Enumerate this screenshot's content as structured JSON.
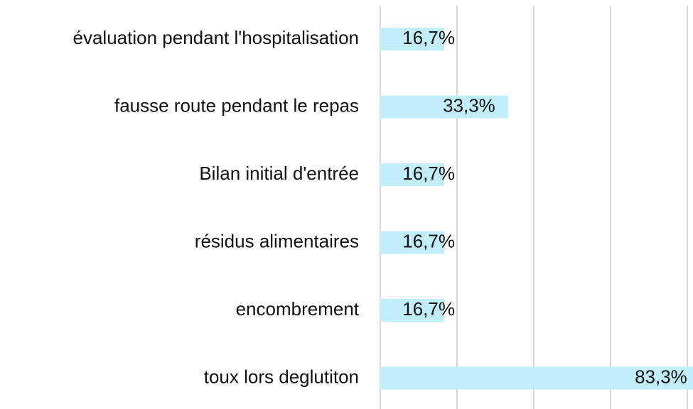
{
  "chart_data": {
    "type": "barh",
    "categories": [
      "évaluation pendant l'hospitalisation",
      "fausse route pendant le repas",
      "Bilan initial d'entrée",
      "résidus alimentaires",
      "encombrement ",
      "toux lors deglutiton"
    ],
    "values": [
      16.7,
      33.3,
      16.7,
      16.7,
      16.7,
      83.3
    ],
    "value_labels": [
      "16,7%",
      "33,3%",
      "16,7%",
      "16,7%",
      "16,7%",
      "83,3%"
    ],
    "color": "#c2eefb",
    "xlim": [
      0,
      80
    ],
    "xticks": [
      0,
      20,
      40,
      60,
      80
    ],
    "grid": true
  }
}
